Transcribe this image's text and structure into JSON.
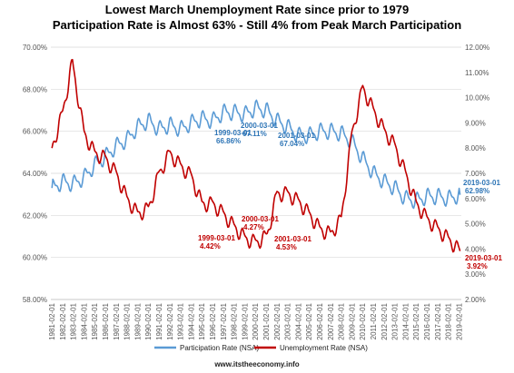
{
  "chart_data": {
    "type": "line",
    "title": "Lowest March Unemployment Rate since prior to 1979",
    "subtitle": "Participation Rate is Almost 63% - Still 4% from Peak March Participation",
    "x_start": "1981-02-01",
    "x_end": "2019-03-01",
    "y_left_ticks": [
      "58.00%",
      "60.00%",
      "62.00%",
      "64.00%",
      "66.00%",
      "68.00%",
      "70.00%"
    ],
    "y_right_ticks": [
      "2.00%",
      "3.00%",
      "4.00%",
      "5.00%",
      "6.00%",
      "7.00%",
      "8.00%",
      "9.00%",
      "10.00%",
      "11.00%",
      "12.00%"
    ],
    "ylim_left": [
      58,
      70
    ],
    "ylim_right": [
      2,
      12
    ],
    "x_ticks": [
      "1981-02-01",
      "1982-02-01",
      "1983-02-01",
      "1984-02-01",
      "1985-02-01",
      "1986-02-01",
      "1987-02-01",
      "1988-02-01",
      "1989-02-01",
      "1990-02-01",
      "1991-02-01",
      "1992-02-01",
      "1993-02-01",
      "1994-02-01",
      "1995-02-01",
      "1996-02-01",
      "1997-02-01",
      "1998-02-01",
      "1999-02-01",
      "2000-02-01",
      "2001-02-01",
      "2002-02-01",
      "2003-02-01",
      "2004-02-01",
      "2005-02-01",
      "2006-02-01",
      "2007-02-01",
      "2008-02-01",
      "2009-02-01",
      "2010-02-01",
      "2011-02-01",
      "2012-02-01",
      "2013-02-01",
      "2014-02-01",
      "2015-02-01",
      "2016-02-01",
      "2017-02-01",
      "2018-02-01",
      "2019-02-01"
    ],
    "grid": true,
    "series": [
      {
        "name": "Participation Rate (NSA)",
        "axis": "left",
        "color": "#5b9bd5",
        "points": [
          [
            1981.1,
            63.3
          ],
          [
            1982.1,
            63.6
          ],
          [
            1983.1,
            63.5
          ],
          [
            1984.1,
            63.8
          ],
          [
            1985.1,
            64.4
          ],
          [
            1986.1,
            64.8
          ],
          [
            1987.1,
            65.3
          ],
          [
            1988.1,
            65.6
          ],
          [
            1989.1,
            66.2
          ],
          [
            1990.1,
            66.5
          ],
          [
            1991.1,
            66.1
          ],
          [
            1992.1,
            66.3
          ],
          [
            1993.1,
            66.1
          ],
          [
            1994.1,
            66.4
          ],
          [
            1995.1,
            66.6
          ],
          [
            1996.1,
            66.5
          ],
          [
            1997.1,
            66.9
          ],
          [
            1998.1,
            66.9
          ],
          [
            1999.1,
            66.8
          ],
          [
            2000.1,
            67.1
          ],
          [
            2001.1,
            67.0
          ],
          [
            2002.1,
            66.5
          ],
          [
            2003.1,
            66.2
          ],
          [
            2004.1,
            65.8
          ],
          [
            2005.1,
            65.8
          ],
          [
            2006.1,
            66.0
          ],
          [
            2007.1,
            66.0
          ],
          [
            2008.1,
            65.9
          ],
          [
            2009.1,
            65.5
          ],
          [
            2010.1,
            64.7
          ],
          [
            2011.1,
            64.0
          ],
          [
            2012.1,
            63.6
          ],
          [
            2013.1,
            63.3
          ],
          [
            2014.1,
            62.8
          ],
          [
            2015.1,
            62.7
          ],
          [
            2016.1,
            62.9
          ],
          [
            2017.1,
            62.9
          ],
          [
            2018.1,
            62.8
          ],
          [
            2019.17,
            62.98
          ]
        ]
      },
      {
        "name": "Unemployment Rate (NSA)",
        "axis": "right",
        "color": "#c00000",
        "points": [
          [
            1981.1,
            8.0
          ],
          [
            1982.1,
            9.4
          ],
          [
            1983.0,
            11.4
          ],
          [
            1984.1,
            8.6
          ],
          [
            1985.1,
            7.8
          ],
          [
            1986.1,
            7.6
          ],
          [
            1987.1,
            7.0
          ],
          [
            1988.1,
            6.0
          ],
          [
            1989.1,
            5.4
          ],
          [
            1990.1,
            5.6
          ],
          [
            1991.1,
            7.0
          ],
          [
            1992.1,
            7.8
          ],
          [
            1993.1,
            7.3
          ],
          [
            1994.1,
            6.9
          ],
          [
            1995.1,
            5.8
          ],
          [
            1996.1,
            5.8
          ],
          [
            1997.1,
            5.4
          ],
          [
            1998.1,
            4.9
          ],
          [
            1999.17,
            4.42
          ],
          [
            2000.17,
            4.27
          ],
          [
            2001.17,
            4.53
          ],
          [
            2002.1,
            6.2
          ],
          [
            2003.1,
            6.2
          ],
          [
            2004.1,
            5.9
          ],
          [
            2005.1,
            5.4
          ],
          [
            2006.1,
            4.8
          ],
          [
            2007.1,
            4.6
          ],
          [
            2008.1,
            5.2
          ],
          [
            2009.1,
            8.6
          ],
          [
            2010.1,
            10.4
          ],
          [
            2011.1,
            9.5
          ],
          [
            2012.1,
            8.7
          ],
          [
            2013.1,
            8.1
          ],
          [
            2014.1,
            7.0
          ],
          [
            2015.1,
            5.8
          ],
          [
            2016.1,
            5.2
          ],
          [
            2017.1,
            4.8
          ],
          [
            2018.1,
            4.4
          ],
          [
            2019.17,
            3.92
          ]
        ]
      }
    ],
    "annotations": [
      {
        "label": "1999-03-01",
        "value": "66.86%",
        "series": 0
      },
      {
        "label": "2000-03-01",
        "value": "67.11%",
        "series": 0
      },
      {
        "label": "2001-03-01",
        "value": "67.04%",
        "series": 0
      },
      {
        "label": "2019-03-01",
        "value": "62.98%",
        "series": 0
      },
      {
        "label": "1999-03-01",
        "value": "4.42%",
        "series": 1
      },
      {
        "label": "2000-03-01",
        "value": "4.27%",
        "series": 1
      },
      {
        "label": "2001-03-01",
        "value": "4.53%",
        "series": 1
      },
      {
        "label": "2019-03-01",
        "value": "3.92%",
        "series": 1
      }
    ],
    "legend_position": "bottom",
    "credit": "www.itstheeconomy.info"
  }
}
